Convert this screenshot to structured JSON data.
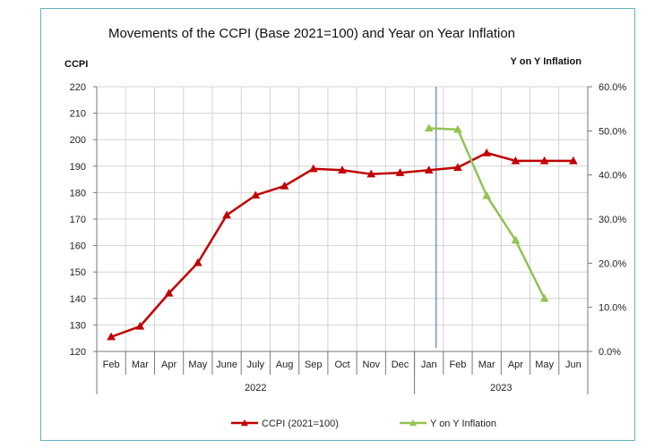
{
  "chart_data": {
    "type": "line",
    "title": "Movements of the CCPI (Base 2021=100) and Year on Year Inflation",
    "ylabel_left": "CCPI",
    "ylabel_right": "Y on Y Inflation",
    "categories": [
      "Feb",
      "Mar",
      "Apr",
      "May",
      "June",
      "July",
      "Aug",
      "Sep",
      "Oct",
      "Nov",
      "Dec",
      "Jan",
      "Feb",
      "Mar",
      "Apr",
      "May",
      "Jun"
    ],
    "year_groups": [
      {
        "label": "2022",
        "start": 0,
        "end": 10
      },
      {
        "label": "2023",
        "start": 11,
        "end": 16
      }
    ],
    "ylim_left": [
      120,
      220
    ],
    "yticks_left": [
      "120",
      "130",
      "140",
      "150",
      "160",
      "170",
      "180",
      "190",
      "200",
      "210",
      "220"
    ],
    "ylim_right": [
      0,
      60
    ],
    "yticks_right": [
      "0.0%",
      "10.0%",
      "20.0%",
      "30.0%",
      "40.0%",
      "50.0%",
      "60.0%"
    ],
    "grid": true,
    "legend_position": "bottom",
    "series": [
      {
        "name": "CCPI (2021=100)",
        "axis": "left",
        "color": "#c00000",
        "marker": "triangle",
        "values": [
          125.5,
          129.5,
          142,
          153.5,
          171.5,
          179,
          182.5,
          189,
          188.5,
          187,
          187.5,
          188.5,
          189.5,
          195,
          192,
          192,
          192
        ]
      },
      {
        "name": "Y on Y Inflation",
        "axis": "right",
        "color": "#92c353",
        "marker": "triangle",
        "values": [
          null,
          null,
          null,
          null,
          null,
          null,
          null,
          null,
          null,
          null,
          null,
          50.6,
          50.3,
          35.3,
          25.2,
          12.0,
          null
        ]
      }
    ]
  }
}
